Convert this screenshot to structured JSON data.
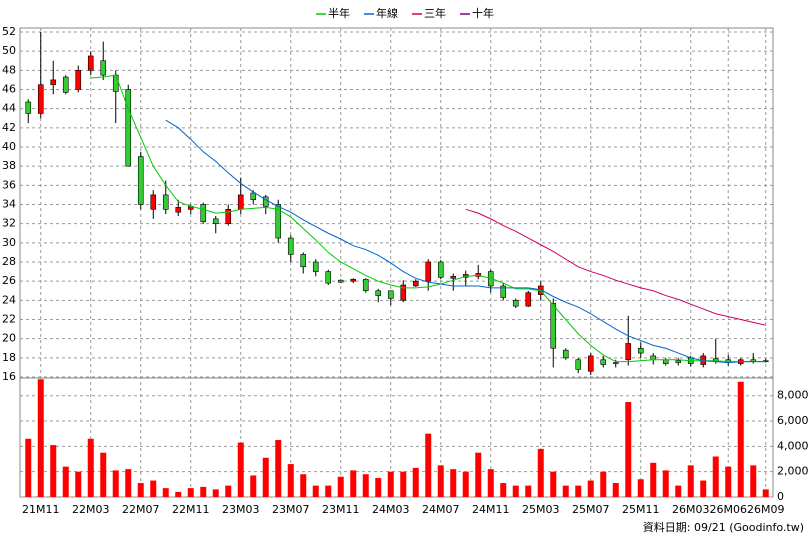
{
  "chart_data": {
    "type": "candlestick",
    "categories": [
      null,
      "21M11",
      null,
      null,
      null,
      "22M03",
      null,
      null,
      null,
      "22M07",
      null,
      null,
      null,
      "22M11",
      null,
      null,
      null,
      "23M03",
      null,
      null,
      null,
      "23M07",
      null,
      null,
      null,
      "23M11",
      null,
      null,
      null,
      "24M03",
      null,
      null,
      null,
      "24M07",
      null,
      null,
      null,
      "24M11",
      null,
      null,
      null,
      "25M03",
      null,
      null,
      null,
      "25M07",
      null,
      null,
      null,
      "25M11",
      null,
      null,
      null,
      "26M03",
      null,
      null,
      "26M06",
      null,
      null,
      "26M09"
    ],
    "open": [
      44.7,
      43.5,
      46.5,
      47.3,
      46,
      48,
      49,
      47.5,
      46,
      39,
      33.5,
      35,
      33.2,
      33.5,
      34,
      32.5,
      32,
      33.5,
      35.2,
      34.8,
      34,
      30.5,
      28.8,
      28,
      27,
      26.1,
      26,
      26.2,
      25,
      25,
      24,
      25.5,
      26,
      28,
      26.3,
      26.4,
      26.5,
      27,
      25.5,
      24,
      23.4,
      24.6,
      23.7,
      18.8,
      17.8,
      16.6,
      17.8,
      17.5,
      17.8,
      19,
      18.2,
      17.8,
      17.7,
      18,
      17.3,
      17.9,
      17.8,
      17.4,
      17.8,
      17.7
    ],
    "high": [
      45,
      52,
      49,
      47.5,
      48.5,
      50,
      51,
      48,
      46.5,
      39.5,
      35.5,
      36.5,
      34.5,
      34,
      34.2,
      32.8,
      34,
      36.8,
      35.5,
      35,
      34.5,
      30.8,
      29,
      28.3,
      27.2,
      26.2,
      26.3,
      26.3,
      25.2,
      25,
      26.1,
      26.2,
      28.3,
      28.2,
      26.8,
      27.1,
      27.7,
      27.2,
      25.8,
      24.2,
      25,
      26,
      24.2,
      19,
      18,
      18.5,
      18.2,
      17.8,
      22.4,
      19.6,
      18.5,
      18,
      18,
      18.2,
      18.5,
      20,
      18.3,
      18,
      18.5,
      17.9
    ],
    "low": [
      42.5,
      43,
      45.5,
      45.5,
      45.7,
      47.5,
      47,
      42.5,
      38,
      33.5,
      32.5,
      33,
      32.8,
      33,
      32,
      31,
      31.8,
      33,
      34,
      33,
      30,
      28,
      26.8,
      26.5,
      25.6,
      25.8,
      25.8,
      24.8,
      23.8,
      23.5,
      23.8,
      25.4,
      25,
      26.2,
      25,
      25.5,
      26.2,
      24.8,
      24,
      23.2,
      23.3,
      24,
      17,
      17.8,
      16.4,
      16.2,
      17,
      17,
      17.2,
      18,
      17.3,
      17.2,
      17.2,
      17.1,
      17,
      17.4,
      17.2,
      17.2,
      17.4,
      17.5
    ],
    "close": [
      43.5,
      46.5,
      47,
      45.7,
      48,
      49.5,
      47.5,
      45.8,
      38,
      34,
      35,
      33.5,
      33.7,
      33.8,
      32.2,
      32,
      33.5,
      35,
      34.5,
      33.8,
      30.5,
      28.8,
      27.5,
      27,
      25.8,
      25.9,
      26.2,
      25,
      24.5,
      24.2,
      25.6,
      26,
      28,
      26.4,
      26.5,
      26.7,
      26.8,
      25.5,
      24.3,
      23.4,
      24.8,
      25.5,
      19,
      18,
      16.8,
      18.2,
      17.3,
      17.4,
      19.5,
      18.5,
      17.8,
      17.4,
      17.5,
      17.4,
      18.2,
      17.6,
      17.5,
      17.8,
      17.6,
      17.6
    ],
    "up_color": "#ff0000",
    "down_color": "#33cc33",
    "volume": {
      "color": "#ff0000",
      "values": [
        4600,
        9300,
        4100,
        2400,
        2000,
        4600,
        3500,
        2100,
        2200,
        1100,
        1300,
        700,
        400,
        700,
        800,
        600,
        900,
        4300,
        1700,
        3100,
        4500,
        2600,
        1800,
        900,
        900,
        1600,
        2100,
        1800,
        1500,
        2000,
        2000,
        2300,
        5000,
        2500,
        2200,
        2000,
        3500,
        2200,
        1100,
        900,
        900,
        3800,
        2000,
        900,
        900,
        1300,
        2000,
        1100,
        7500,
        1400,
        2700,
        2100,
        900,
        2500,
        1300,
        3200,
        2400,
        9100,
        2500,
        600
      ]
    },
    "series": [
      {
        "name": "半年",
        "color": "#00cc00",
        "values": [
          null,
          null,
          null,
          null,
          null,
          47.2,
          47.3,
          47.5,
          44,
          41,
          38,
          36,
          34.3,
          33.8,
          33.5,
          33.1,
          33.2,
          33.5,
          33.6,
          33.7,
          33.5,
          32.7,
          31.5,
          30.3,
          29,
          28,
          27.3,
          26.6,
          26,
          25.6,
          25.3,
          25.3,
          25.4,
          25.7,
          26.1,
          26.5,
          26.6,
          26.3,
          25.8,
          25.2,
          25.2,
          25,
          23.5,
          22,
          20.5,
          19.3,
          18.3,
          17.6,
          17.6,
          17.7,
          17.8,
          17.8,
          17.8,
          17.7,
          17.7,
          17.7,
          17.6,
          17.6,
          17.6,
          17.6
        ]
      },
      {
        "name": "年線",
        "color": "#0066cc",
        "values": [
          null,
          null,
          null,
          null,
          null,
          null,
          null,
          null,
          null,
          null,
          null,
          42.8,
          42,
          40.8,
          39.5,
          38.5,
          37.3,
          36.2,
          35.3,
          34.5,
          33.8,
          33.2,
          32.4,
          31.7,
          31,
          30.4,
          29.7,
          29.3,
          28.7,
          27.9,
          27,
          26.3,
          25.9,
          25.7,
          25.5,
          25.5,
          25.5,
          25.3,
          25.3,
          25.3,
          25.3,
          25.1,
          24.4,
          23.8,
          23.3,
          22.6,
          21.8,
          21,
          20.3,
          19.8,
          19.3,
          19,
          18.5,
          18,
          17.7,
          17.6,
          17.5,
          17.6,
          17.6,
          17.6
        ]
      },
      {
        "name": "三年",
        "color": "#cc0066",
        "values": [
          null,
          null,
          null,
          null,
          null,
          null,
          null,
          null,
          null,
          null,
          null,
          null,
          null,
          null,
          null,
          null,
          null,
          null,
          null,
          null,
          null,
          null,
          null,
          null,
          null,
          null,
          null,
          null,
          null,
          null,
          null,
          null,
          null,
          null,
          null,
          33.5,
          33.1,
          32.5,
          31.8,
          31.2,
          30.5,
          29.8,
          29.1,
          28.3,
          27.5,
          27,
          26.6,
          26.1,
          25.7,
          25.3,
          25,
          24.5,
          24.1,
          23.6,
          23.1,
          22.6,
          22.3,
          22,
          21.7,
          21.4
        ]
      },
      {
        "name": "十年",
        "color": "#800080",
        "values": [
          null,
          null,
          null,
          null,
          null,
          null,
          null,
          null,
          null,
          null,
          null,
          null,
          null,
          null,
          null,
          null,
          null,
          null,
          null,
          null,
          null,
          null,
          null,
          null,
          null,
          null,
          null,
          null,
          null,
          null,
          null,
          null,
          null,
          null,
          null,
          null,
          null,
          null,
          null,
          null,
          null,
          null,
          null,
          null,
          null,
          null,
          null,
          null,
          null,
          null,
          null,
          null,
          null,
          null,
          null,
          null,
          null,
          null,
          null,
          null
        ]
      }
    ],
    "ylim": [
      16,
      52
    ],
    "yticks": [
      16,
      18,
      20,
      22,
      24,
      26,
      28,
      30,
      32,
      34,
      36,
      38,
      40,
      42,
      44,
      46,
      48,
      50,
      52
    ],
    "y2lim": [
      0,
      9400
    ],
    "y2ticks": [
      0,
      {
        "value": 2000,
        "label": "2,000"
      },
      {
        "value": 4000,
        "label": "4,000"
      },
      {
        "value": 6000,
        "label": "6,000"
      },
      {
        "value": 8000,
        "label": "8,000"
      }
    ],
    "grid": true,
    "legend": "top",
    "footer": "資料日期: 09/21  (Goodinfo.tw)"
  }
}
